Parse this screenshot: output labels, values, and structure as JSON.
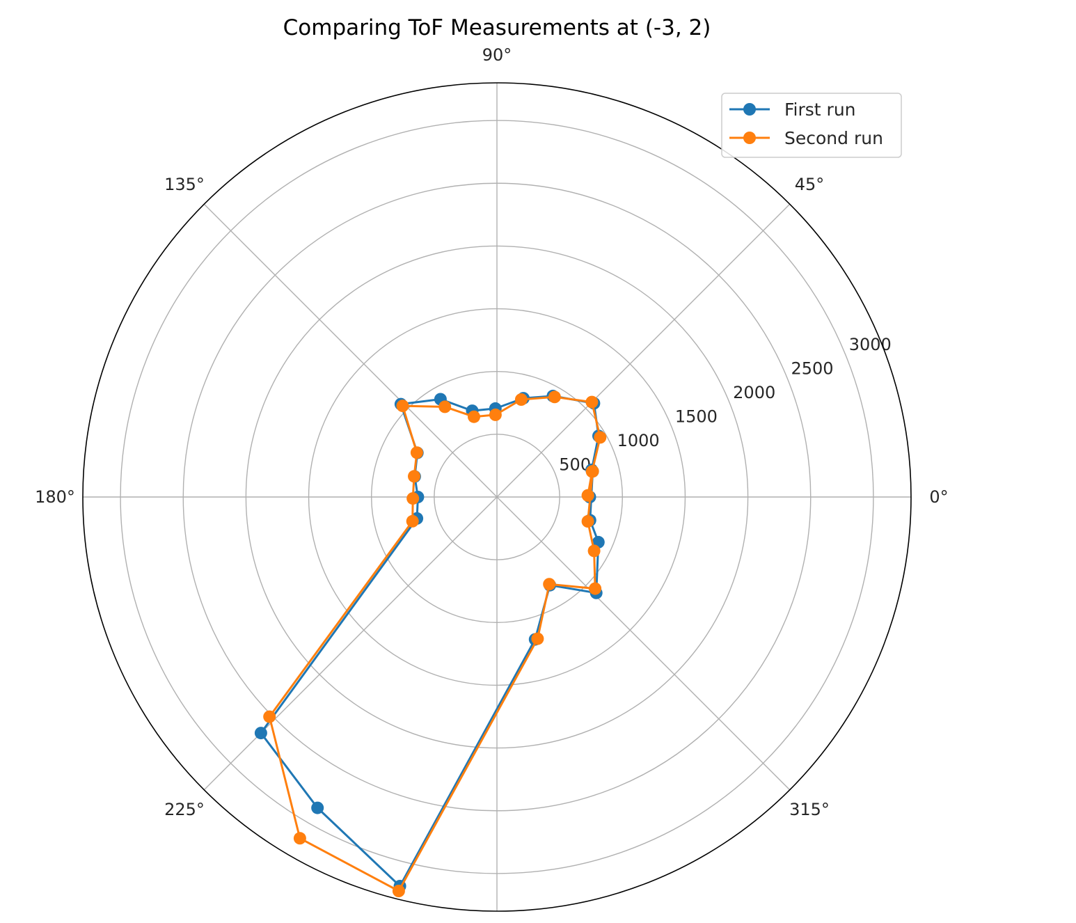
{
  "chart_data": {
    "type": "polar-line",
    "title": "Comparing ToF Measurements at (-3, 2)",
    "theta_unit": "degrees",
    "angle_tick_labels": [
      "0°",
      "45°",
      "90°",
      "135°",
      "180°",
      "225°",
      "315°"
    ],
    "angle_ticks": [
      0,
      45,
      90,
      135,
      180,
      225,
      315
    ],
    "radial_ticks": [
      500,
      1000,
      1500,
      2000,
      2500,
      3000
    ],
    "radial_tick_labels": [
      "500",
      "1000",
      "1500",
      "2000",
      "2500",
      "3000"
    ],
    "rlim": [
      0,
      3300
    ],
    "grid": true,
    "legend": {
      "position": "top-right",
      "entries": [
        "First run",
        "Second run"
      ]
    },
    "series": [
      {
        "name": "First run",
        "color": "#1f77b4",
        "points": [
          {
            "theta": 0,
            "r": 740
          },
          {
            "theta": 16,
            "r": 785
          },
          {
            "theta": 31,
            "r": 945
          },
          {
            "theta": 44,
            "r": 1075
          },
          {
            "theta": 61,
            "r": 920
          },
          {
            "theta": 75,
            "r": 815
          },
          {
            "theta": 91,
            "r": 705
          },
          {
            "theta": 106,
            "r": 715
          },
          {
            "theta": 120,
            "r": 900
          },
          {
            "theta": 136,
            "r": 1065
          },
          {
            "theta": 151,
            "r": 725
          },
          {
            "theta": 166,
            "r": 675
          },
          {
            "theta": 180,
            "r": 630
          },
          {
            "theta": 195,
            "r": 660
          },
          {
            "theta": 225,
            "r": 2660
          },
          {
            "theta": 240,
            "r": 2860
          },
          {
            "theta": 256,
            "r": 3195
          },
          {
            "theta": 285,
            "r": 1175
          },
          {
            "theta": 301,
            "r": 820
          },
          {
            "theta": 316,
            "r": 1100
          },
          {
            "theta": 336,
            "r": 885
          },
          {
            "theta": 346,
            "r": 765
          },
          {
            "theta": 15,
            "r": 790
          },
          {
            "theta": 0,
            "r": 740
          }
        ]
      },
      {
        "name": "Second run",
        "color": "#ff7f0e",
        "points": [
          {
            "theta": 1,
            "r": 725
          },
          {
            "theta": 15,
            "r": 785
          },
          {
            "theta": 30,
            "r": 950
          },
          {
            "theta": 45,
            "r": 1070
          },
          {
            "theta": 60,
            "r": 920
          },
          {
            "theta": 76,
            "r": 800
          },
          {
            "theta": 91,
            "r": 655
          },
          {
            "theta": 106,
            "r": 665
          },
          {
            "theta": 120,
            "r": 830
          },
          {
            "theta": 136,
            "r": 1045
          },
          {
            "theta": 151,
            "r": 730
          },
          {
            "theta": 166,
            "r": 680
          },
          {
            "theta": 181,
            "r": 670
          },
          {
            "theta": 196,
            "r": 700
          },
          {
            "theta": 224,
            "r": 2520
          },
          {
            "theta": 240,
            "r": 3140
          },
          {
            "theta": 256,
            "r": 3235
          },
          {
            "theta": 286,
            "r": 1175
          },
          {
            "theta": 301,
            "r": 810
          },
          {
            "theta": 317,
            "r": 1070
          },
          {
            "theta": 331,
            "r": 885
          },
          {
            "theta": 345,
            "r": 750
          },
          {
            "theta": 15,
            "r": 790
          },
          {
            "theta": 1,
            "r": 725
          }
        ]
      }
    ]
  }
}
